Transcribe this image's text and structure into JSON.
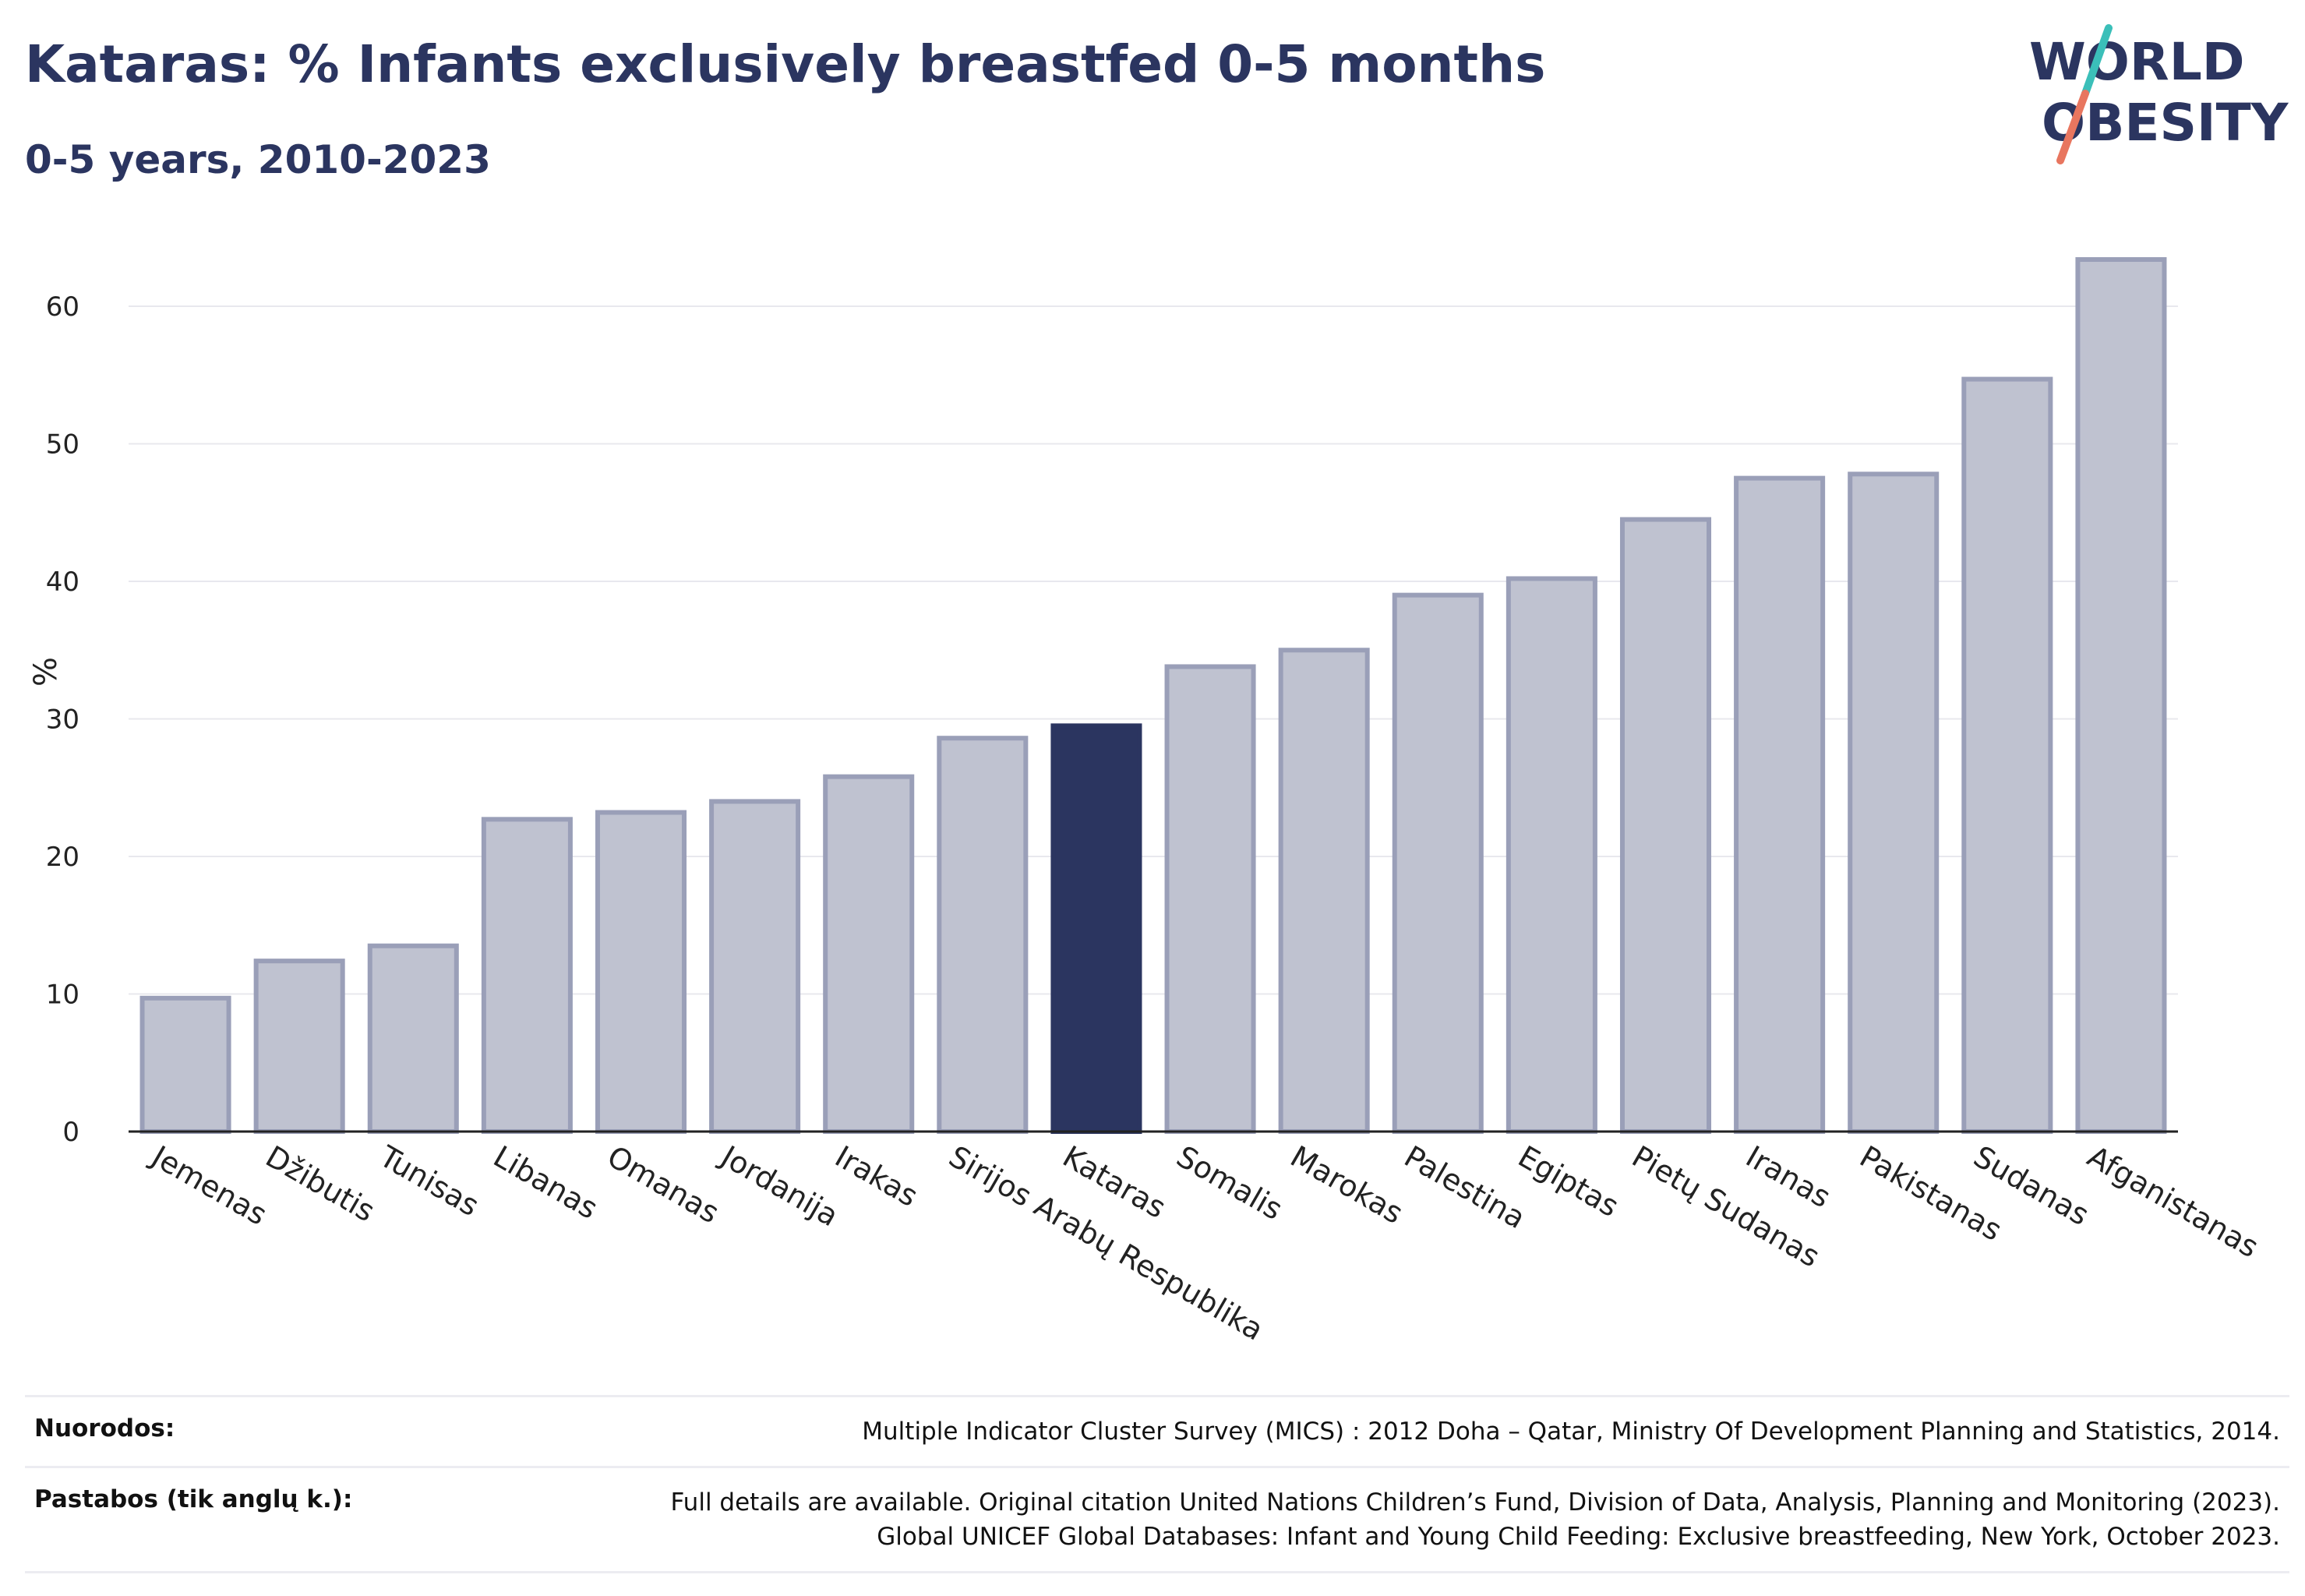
{
  "title": "Kataras: % Infants exclusively breastfed 0-5 months",
  "subtitle": "0-5 years, 2010-2023",
  "logo": {
    "line1": "WORLD",
    "line2": "OBESITY"
  },
  "colors": {
    "bar": "#bfc2d0",
    "bar_border": "#9a9fb8",
    "highlight": "#2b3560",
    "grid": "#e8e8ee",
    "logo_teal": "#3bbfb9",
    "logo_coral": "#e8765f"
  },
  "chart_data": {
    "type": "bar",
    "ylabel": "%",
    "ylim": [
      0,
      65
    ],
    "yticks": [
      0,
      10,
      20,
      30,
      40,
      50,
      60
    ],
    "grid": true,
    "highlight": "Kataras",
    "categories": [
      "Jemenas",
      "Džibutis",
      "Tunisas",
      "Libanas",
      "Omanas",
      "Jordanija",
      "Irakas",
      "Sirijos Arabų Respublika",
      "Kataras",
      "Somalis",
      "Marokas",
      "Palestina",
      "Egiptas",
      "Pietų Sudanas",
      "Iranas",
      "Pakistanas",
      "Sudanas",
      "Afganistanas"
    ],
    "values": [
      9.7,
      12.4,
      13.5,
      22.7,
      23.2,
      24.0,
      25.8,
      28.6,
      29.5,
      33.8,
      35.0,
      39.0,
      40.2,
      44.5,
      47.5,
      47.8,
      54.7,
      63.4
    ]
  },
  "footer": {
    "sources_label": "Nuorodos:",
    "sources_text": "Multiple Indicator Cluster Survey (MICS) : 2012 Doha – Qatar, Ministry Of Development Planning and Statistics, 2014.",
    "notes_label": "Pastabos (tik anglų k.):",
    "notes_text_1": "Full details are available. Original citation United Nations Children’s Fund, Division of Data, Analysis, Planning and Monitoring (2023).",
    "notes_text_2": "Global UNICEF Global Databases: Infant and Young Child Feeding: Exclusive breastfeeding, New York, October 2023."
  }
}
